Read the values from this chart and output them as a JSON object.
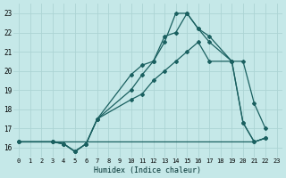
{
  "xlabel": "Humidex (Indice chaleur)",
  "background_color": "#c5e8e8",
  "grid_color": "#add4d4",
  "line_color": "#1a6060",
  "xlim": [
    -0.5,
    23.5
  ],
  "ylim": [
    15.5,
    23.5
  ],
  "yticks": [
    16,
    17,
    18,
    19,
    20,
    21,
    22,
    23
  ],
  "xticks": [
    0,
    1,
    2,
    3,
    4,
    5,
    6,
    7,
    8,
    9,
    10,
    11,
    12,
    13,
    14,
    15,
    16,
    17,
    18,
    19,
    20,
    21,
    22,
    23
  ],
  "series1_x": [
    0,
    1,
    2,
    3,
    4,
    5,
    6,
    7,
    8,
    9,
    10,
    11,
    12,
    13,
    14,
    15,
    16,
    17,
    18,
    19,
    20,
    21,
    22
  ],
  "series1_y": [
    16.3,
    16.3,
    16.3,
    16.3,
    16.3,
    16.3,
    16.3,
    16.3,
    16.3,
    16.3,
    16.3,
    16.3,
    16.3,
    16.3,
    16.3,
    16.3,
    16.3,
    16.3,
    16.3,
    16.3,
    16.3,
    16.3,
    16.5
  ],
  "series2_x": [
    0,
    3,
    4,
    5,
    6,
    7,
    10,
    11,
    12,
    13,
    14,
    15,
    16,
    17,
    19,
    20,
    21,
    22
  ],
  "series2_y": [
    16.3,
    16.3,
    16.2,
    15.8,
    16.2,
    17.5,
    18.5,
    18.8,
    19.5,
    20.0,
    20.5,
    21.0,
    21.5,
    20.5,
    20.5,
    17.3,
    16.3,
    16.5
  ],
  "series3_x": [
    0,
    3,
    4,
    5,
    6,
    7,
    10,
    11,
    12,
    13,
    14,
    15,
    16,
    17,
    19,
    20,
    21,
    22
  ],
  "series3_y": [
    16.3,
    16.3,
    16.2,
    15.8,
    16.2,
    17.5,
    19.0,
    19.8,
    20.5,
    21.8,
    22.0,
    23.0,
    22.2,
    21.8,
    20.5,
    20.5,
    18.3,
    17.0
  ],
  "series4_x": [
    0,
    3,
    4,
    5,
    6,
    7,
    10,
    11,
    12,
    13,
    14,
    15,
    16,
    17,
    19,
    20,
    21,
    22
  ],
  "series4_y": [
    16.3,
    16.3,
    16.2,
    15.8,
    16.2,
    17.5,
    19.8,
    20.3,
    20.5,
    21.5,
    23.0,
    23.0,
    22.2,
    21.5,
    20.5,
    17.3,
    16.3,
    16.5
  ]
}
